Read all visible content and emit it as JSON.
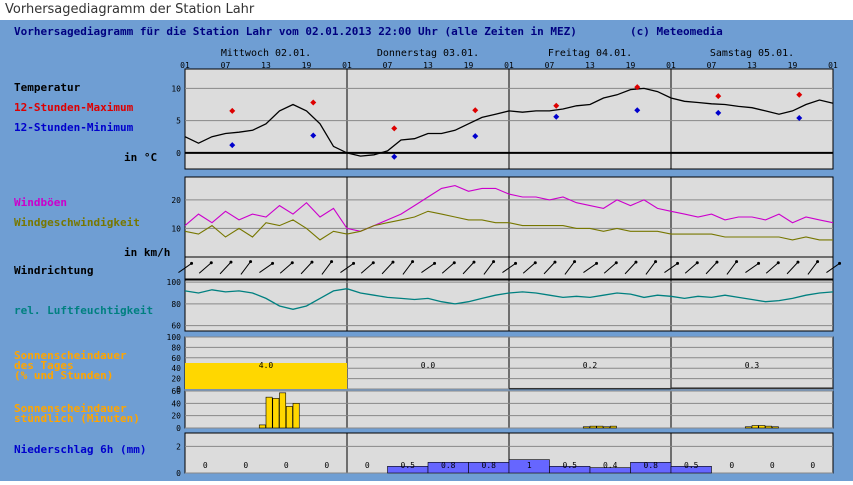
{
  "page": {
    "title": "Vorhersagediagramm der Station Lahr"
  },
  "header": {
    "title": "Vorhersagediagramm für die Station Lahr vom 02.01.2013 22:00 Uhr (alle Zeiten in MEZ)",
    "copyright": "(c) Meteomedia"
  },
  "days": [
    "Mittwoch 02.01.",
    "Donnerstag 03.01.",
    "Freitag 04.01.",
    "Samstag 05.01."
  ],
  "hour_labels": [
    "01",
    "07",
    "13",
    "19",
    "01",
    "07",
    "13",
    "19",
    "01",
    "07",
    "13",
    "19",
    "01",
    "07",
    "13",
    "19",
    "01"
  ],
  "labels": {
    "temperature": "Temperatur",
    "tmax": "12-Stunden-Maximum",
    "tmin": "12-Stunden-Minimum",
    "temp_unit": "in °C",
    "gusts": "Windböen",
    "windspeed": "Windgeschwindigkeit",
    "wind_unit": "in km/h",
    "winddir": "Windrichtung",
    "humidity": "rel. Luftfeuchtigkeit",
    "sun_daily_1": "Sonnenscheindauer",
    "sun_daily_2": "des Tages",
    "sun_daily_3": "(% und Stunden)",
    "sun_hourly_1": "Sonnenscheindauer",
    "sun_hourly_2": "stündlich (Minuten)",
    "precip": "Niederschlag 6h (mm)"
  },
  "colors": {
    "panel": "#6f9ed3",
    "plot_bg": "#dcdcdc",
    "temp_line": "#000000",
    "tmax": "#dd0000",
    "tmin": "#0000cc",
    "gusts": "#cc00cc",
    "wind": "#777700",
    "humidity": "#008080",
    "sun": "#ffd700",
    "sun_label": "#ffa500",
    "precip": "#6666ff",
    "precip_label": "#0000cc"
  },
  "chart_data": [
    {
      "type": "line",
      "name": "temperature",
      "x_unit": "hours since 02.01. 01:00",
      "ylim": [
        -2.5,
        13
      ],
      "yticks": [
        0,
        5,
        10
      ],
      "ylabel": "in °C",
      "series": [
        {
          "name": "Temperatur",
          "x": [
            0,
            2,
            4,
            6,
            8,
            10,
            12,
            14,
            16,
            18,
            20,
            22,
            24,
            26,
            28,
            30,
            32,
            34,
            36,
            38,
            40,
            42,
            44,
            46,
            48,
            50,
            52,
            54,
            56,
            58,
            60,
            62,
            64,
            66,
            68,
            70,
            72,
            74,
            76,
            78,
            80,
            82,
            84,
            86,
            88,
            90,
            92,
            94,
            96
          ],
          "y": [
            2.5,
            1.5,
            2.5,
            3,
            3.2,
            3.5,
            4.5,
            6.5,
            7.5,
            6.5,
            4.5,
            1,
            0,
            -0.5,
            -0.3,
            0.3,
            2,
            2.2,
            3,
            3,
            3.5,
            4.5,
            5.5,
            6,
            6.5,
            6.3,
            6.5,
            6.5,
            6.8,
            7.3,
            7.5,
            8.5,
            9,
            9.8,
            10,
            9.5,
            8.5,
            8,
            7.8,
            7.6,
            7.5,
            7.2,
            7,
            6.5,
            6,
            6.5,
            7.5,
            8.2,
            7.7
          ]
        }
      ],
      "markers": {
        "tmax": {
          "x": [
            7,
            19,
            31,
            43,
            55,
            67,
            79,
            91
          ],
          "y": [
            6.5,
            7.8,
            3.8,
            6.6,
            7.3,
            10.2,
            8.8,
            9.0
          ]
        },
        "tmin": {
          "x": [
            7,
            19,
            31,
            43,
            55,
            67,
            79,
            91
          ],
          "y": [
            1.2,
            2.7,
            -0.6,
            2.6,
            5.6,
            6.6,
            6.2,
            5.4
          ]
        }
      }
    },
    {
      "type": "line",
      "name": "wind",
      "ylim": [
        0,
        28
      ],
      "yticks": [
        10,
        20
      ],
      "ylabel": "in km/h",
      "series": [
        {
          "name": "Windböen",
          "x": [
            0,
            2,
            4,
            6,
            8,
            10,
            12,
            14,
            16,
            18,
            20,
            22,
            24,
            26,
            28,
            30,
            32,
            34,
            36,
            38,
            40,
            42,
            44,
            46,
            48,
            50,
            52,
            54,
            56,
            58,
            60,
            62,
            64,
            66,
            68,
            70,
            72,
            74,
            76,
            78,
            80,
            82,
            84,
            86,
            88,
            90,
            92,
            94,
            96
          ],
          "y": [
            11,
            15,
            12,
            16,
            13,
            15,
            14,
            18,
            15,
            19,
            14,
            17,
            10,
            9,
            11,
            13,
            15,
            18,
            21,
            24,
            25,
            23,
            24,
            24,
            22,
            21,
            21,
            20,
            21,
            19,
            18,
            17,
            20,
            18,
            20,
            17,
            16,
            15,
            14,
            15,
            13,
            14,
            14,
            13,
            15,
            12,
            14,
            13,
            12
          ]
        },
        {
          "name": "Windgeschwindigkeit",
          "x": [
            0,
            2,
            4,
            6,
            8,
            10,
            12,
            14,
            16,
            18,
            20,
            22,
            24,
            26,
            28,
            30,
            32,
            34,
            36,
            38,
            40,
            42,
            44,
            46,
            48,
            50,
            52,
            54,
            56,
            58,
            60,
            62,
            64,
            66,
            68,
            70,
            72,
            74,
            76,
            78,
            80,
            82,
            84,
            86,
            88,
            90,
            92,
            94,
            96
          ],
          "y": [
            9,
            8,
            11,
            7,
            10,
            7,
            12,
            11,
            13,
            10,
            6,
            9,
            8,
            9,
            11,
            12,
            13,
            14,
            16,
            15,
            14,
            13,
            13,
            12,
            12,
            11,
            11,
            11,
            11,
            10,
            10,
            9,
            10,
            9,
            9,
            9,
            8,
            8,
            8,
            8,
            7,
            7,
            7,
            7,
            7,
            6,
            7,
            6,
            6
          ]
        }
      ]
    },
    {
      "type": "line",
      "name": "winddirection",
      "note_values": "arrow directions shown pointing from south-west toward north-east"
    },
    {
      "type": "line",
      "name": "humidity",
      "ylim": [
        55,
        102
      ],
      "yticks": [
        60,
        80,
        100
      ],
      "series": [
        {
          "name": "rel. Luftfeuchtigkeit",
          "x": [
            0,
            2,
            4,
            6,
            8,
            10,
            12,
            14,
            16,
            18,
            20,
            22,
            24,
            26,
            28,
            30,
            32,
            34,
            36,
            38,
            40,
            42,
            44,
            46,
            48,
            50,
            52,
            54,
            56,
            58,
            60,
            62,
            64,
            66,
            68,
            70,
            72,
            74,
            76,
            78,
            80,
            82,
            84,
            86,
            88,
            90,
            92,
            94,
            96
          ],
          "y": [
            92,
            90,
            93,
            91,
            92,
            90,
            85,
            78,
            75,
            78,
            85,
            92,
            94,
            90,
            88,
            86,
            85,
            84,
            85,
            82,
            80,
            82,
            85,
            88,
            90,
            91,
            90,
            88,
            86,
            87,
            86,
            88,
            90,
            89,
            86,
            88,
            87,
            85,
            87,
            86,
            88,
            86,
            84,
            82,
            83,
            85,
            88,
            90,
            91
          ]
        }
      ]
    },
    {
      "type": "bar",
      "name": "sunshine_daily",
      "ylim": [
        0,
        100
      ],
      "yticks": [
        0,
        20,
        40,
        60,
        80,
        100
      ],
      "categories": [
        "Mittwoch 02.01.",
        "Donnerstag 03.01.",
        "Freitag 04.01.",
        "Samstag 05.01."
      ],
      "percent": [
        50,
        0,
        2,
        3
      ],
      "hours": [
        "4.0",
        "0.0",
        "0.2",
        "0.3"
      ]
    },
    {
      "type": "bar",
      "name": "sunshine_hourly",
      "ylim": [
        0,
        60
      ],
      "yticks": [
        0,
        20,
        40,
        60
      ],
      "x": [
        11,
        12,
        13,
        14,
        15,
        16,
        59,
        60,
        61,
        62,
        63,
        83,
        84,
        85,
        86,
        87
      ],
      "values": [
        5,
        50,
        48,
        57,
        35,
        40,
        2,
        3,
        3,
        2,
        3,
        2,
        4,
        4,
        3,
        2
      ]
    },
    {
      "type": "bar",
      "name": "precipitation_6h",
      "ylim": [
        0,
        3
      ],
      "yticks": [
        0,
        2
      ],
      "labels": [
        "0",
        "0",
        "0",
        "0",
        "0",
        "0.5",
        "0.8",
        "0.8",
        "1",
        "0.5",
        "0.4",
        "0.8",
        "0.5",
        "0",
        "0",
        "0"
      ],
      "values": [
        0,
        0,
        0,
        0,
        0,
        0.5,
        0.8,
        0.8,
        1,
        0.5,
        0.4,
        0.8,
        0.5,
        0,
        0,
        0
      ]
    }
  ]
}
